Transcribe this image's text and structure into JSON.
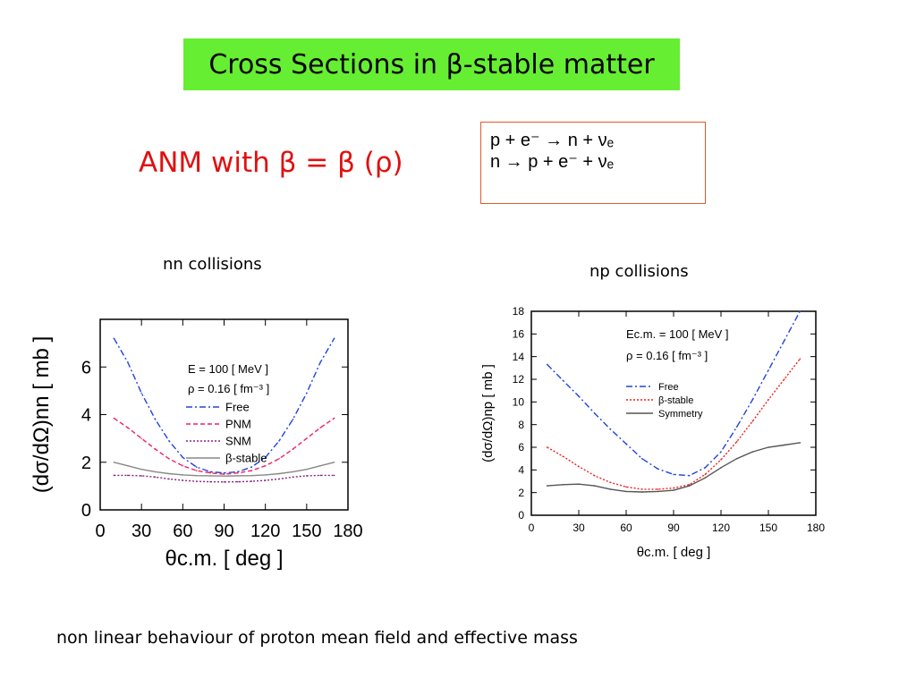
{
  "title": "Cross Sections in  β-stable matter",
  "subtitle": "ANM with β = β (ρ)",
  "equations": {
    "line1": "p +  e⁻  → n + νₑ",
    "line2": "n → p + e⁻  + νₑ"
  },
  "captions": {
    "left": "nn collisions",
    "right": "np collisions"
  },
  "footer": "non linear behaviour of proton mean field and effective mass",
  "colors": {
    "title_bg": "#66ee33",
    "subtitle": "#e01010",
    "eq_border": "#e05a2a",
    "free": "#2244dd",
    "pnm": "#ee2266",
    "snm": "#882288",
    "beta": "#888888",
    "sym": "#555555"
  },
  "chart_data": [
    {
      "type": "line",
      "xlabel": "θc.m. [ deg ]",
      "ylabel": "(dσ/dΩ)nn [ mb ]",
      "xlim": [
        0,
        180
      ],
      "ylim": [
        0,
        8
      ],
      "xticks": [
        "0",
        "30",
        "60",
        "90",
        "120",
        "150",
        "180"
      ],
      "yticks": [
        "0",
        "2",
        "4",
        "6"
      ],
      "annotations": [
        "E = 100 [ MeV ]",
        "ρ = 0.16 [ fm⁻³ ]"
      ],
      "legend_position": "center",
      "series": [
        {
          "name": "Free",
          "style": "dash-dot",
          "color": "#2244dd",
          "x": [
            10,
            20,
            30,
            40,
            50,
            60,
            70,
            80,
            90,
            100,
            110,
            120,
            130,
            140,
            150,
            160,
            170
          ],
          "y": [
            7.2,
            6.2,
            4.9,
            3.8,
            2.9,
            2.2,
            1.8,
            1.6,
            1.55,
            1.6,
            1.8,
            2.2,
            2.9,
            3.8,
            4.9,
            6.2,
            7.2
          ]
        },
        {
          "name": "PNM",
          "style": "dashed",
          "color": "#ee2266",
          "x": [
            10,
            20,
            30,
            40,
            50,
            60,
            70,
            80,
            90,
            100,
            110,
            120,
            130,
            140,
            150,
            160,
            170
          ],
          "y": [
            3.85,
            3.45,
            3.0,
            2.55,
            2.15,
            1.85,
            1.65,
            1.55,
            1.5,
            1.55,
            1.65,
            1.85,
            2.15,
            2.55,
            3.0,
            3.45,
            3.85
          ]
        },
        {
          "name": "SNM",
          "style": "dotted",
          "color": "#882288",
          "x": [
            10,
            20,
            30,
            40,
            50,
            60,
            70,
            80,
            90,
            100,
            110,
            120,
            130,
            140,
            150,
            160,
            170
          ],
          "y": [
            1.45,
            1.45,
            1.43,
            1.38,
            1.3,
            1.24,
            1.2,
            1.18,
            1.17,
            1.18,
            1.2,
            1.24,
            1.3,
            1.38,
            1.43,
            1.45,
            1.45
          ]
        },
        {
          "name": "β-stable",
          "style": "solid",
          "color": "#888888",
          "x": [
            10,
            20,
            30,
            40,
            50,
            60,
            70,
            80,
            90,
            100,
            110,
            120,
            130,
            140,
            150,
            160,
            170
          ],
          "y": [
            2.0,
            1.85,
            1.7,
            1.6,
            1.52,
            1.47,
            1.44,
            1.43,
            1.42,
            1.43,
            1.44,
            1.47,
            1.52,
            1.6,
            1.7,
            1.85,
            2.0
          ]
        }
      ]
    },
    {
      "type": "line",
      "xlabel": "θc.m. [ deg ]",
      "ylabel": "(dσ/dΩ)np [ mb ]",
      "xlim": [
        0,
        180
      ],
      "ylim": [
        0,
        18
      ],
      "xticks": [
        "0",
        "30",
        "60",
        "90",
        "120",
        "150",
        "180"
      ],
      "yticks": [
        "0",
        "2",
        "4",
        "6",
        "8",
        "10",
        "12",
        "14",
        "16",
        "18"
      ],
      "annotations": [
        "Ec.m. = 100 [ MeV ]",
        "ρ = 0.16 [ fm⁻³ ]"
      ],
      "legend_position": "center",
      "series": [
        {
          "name": "Free",
          "style": "dash-dot",
          "color": "#2244dd",
          "x": [
            10,
            20,
            30,
            40,
            50,
            60,
            70,
            80,
            90,
            100,
            110,
            120,
            130,
            140,
            150,
            160,
            170
          ],
          "y": [
            13.3,
            11.9,
            10.5,
            9.0,
            7.6,
            6.3,
            5.0,
            4.1,
            3.6,
            3.5,
            4.2,
            5.6,
            7.8,
            10.2,
            12.8,
            15.4,
            18.0
          ]
        },
        {
          "name": "β-stable",
          "style": "dotted",
          "color": "#ee2222",
          "x": [
            10,
            20,
            30,
            40,
            50,
            60,
            70,
            80,
            90,
            100,
            110,
            120,
            130,
            140,
            150,
            160,
            170
          ],
          "y": [
            6.0,
            5.2,
            4.3,
            3.5,
            2.9,
            2.5,
            2.3,
            2.3,
            2.4,
            2.7,
            3.6,
            4.9,
            6.5,
            8.3,
            10.2,
            12.0,
            13.8
          ]
        },
        {
          "name": "Symmetry",
          "style": "solid",
          "color": "#555555",
          "x": [
            10,
            20,
            30,
            40,
            50,
            60,
            70,
            80,
            90,
            100,
            110,
            120,
            130,
            140,
            150,
            160,
            170
          ],
          "y": [
            2.6,
            2.7,
            2.75,
            2.6,
            2.3,
            2.1,
            2.05,
            2.1,
            2.2,
            2.6,
            3.3,
            4.2,
            5.0,
            5.6,
            6.0,
            6.2,
            6.4
          ]
        }
      ]
    }
  ]
}
